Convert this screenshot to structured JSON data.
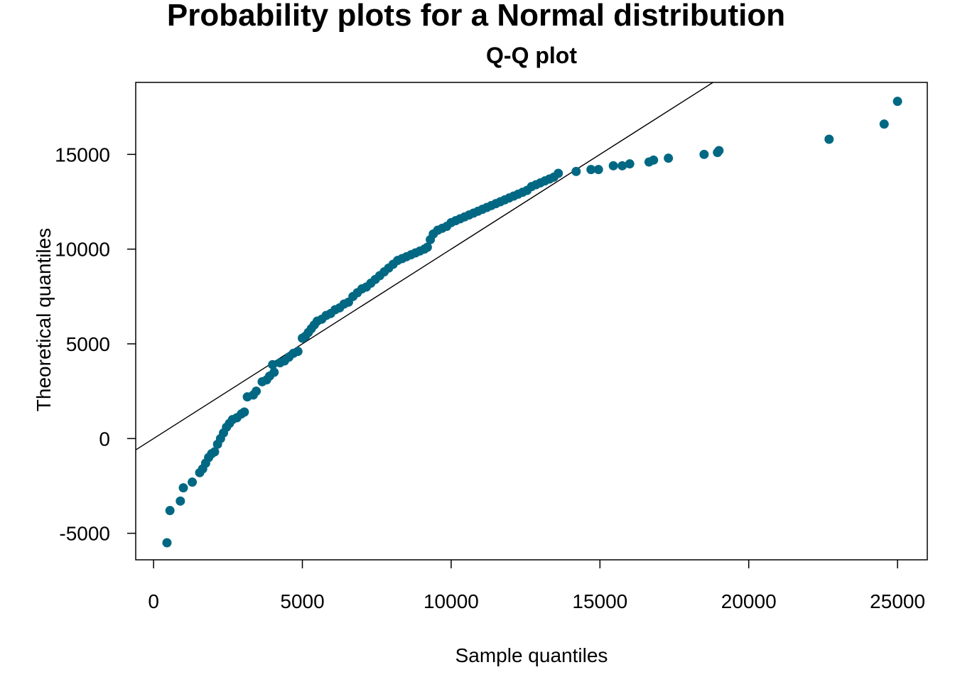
{
  "figure": {
    "title": "Probability plots for a Normal distribution",
    "subtitle": "Q-Q plot"
  },
  "chart_data": {
    "type": "scatter",
    "title": "Q-Q plot",
    "xlabel": "Sample quantiles",
    "ylabel": "Theoretical quantiles",
    "xlim": [
      -600,
      26000
    ],
    "ylim": [
      -6400,
      18800
    ],
    "xticks": [
      0,
      5000,
      10000,
      15000,
      20000,
      25000
    ],
    "yticks": [
      -5000,
      0,
      5000,
      10000,
      15000
    ],
    "x_tick_labels": [
      "0",
      "5000",
      "10000",
      "15000",
      "20000",
      "25000"
    ],
    "y_tick_labels": [
      "-5000",
      "0",
      "5000",
      "10000",
      "15000"
    ],
    "point_color": "#006883",
    "line_color": "#000000",
    "reference_line": {
      "x": [
        -600,
        18800
      ],
      "y": [
        -600,
        18800
      ]
    },
    "points": [
      [
        450,
        -5500
      ],
      [
        550,
        -3800
      ],
      [
        900,
        -3300
      ],
      [
        1000,
        -2600
      ],
      [
        1300,
        -2300
      ],
      [
        1550,
        -1800
      ],
      [
        1650,
        -1600
      ],
      [
        1750,
        -1300
      ],
      [
        1850,
        -1000
      ],
      [
        1950,
        -800
      ],
      [
        2050,
        -700
      ],
      [
        2150,
        -300
      ],
      [
        2250,
        0
      ],
      [
        2350,
        300
      ],
      [
        2450,
        600
      ],
      [
        2550,
        800
      ],
      [
        2650,
        1000
      ],
      [
        2800,
        1100
      ],
      [
        2950,
        1300
      ],
      [
        3050,
        1400
      ],
      [
        3150,
        2200
      ],
      [
        3350,
        2300
      ],
      [
        3450,
        2500
      ],
      [
        3650,
        3000
      ],
      [
        3800,
        3100
      ],
      [
        3900,
        3300
      ],
      [
        4050,
        3500
      ],
      [
        4000,
        3900
      ],
      [
        4250,
        4000
      ],
      [
        4400,
        4100
      ],
      [
        4550,
        4300
      ],
      [
        4700,
        4500
      ],
      [
        4850,
        4600
      ],
      [
        5000,
        5300
      ],
      [
        5100,
        5400
      ],
      [
        5200,
        5600
      ],
      [
        5300,
        5800
      ],
      [
        5400,
        6000
      ],
      [
        5500,
        6200
      ],
      [
        5650,
        6300
      ],
      [
        5800,
        6500
      ],
      [
        5950,
        6600
      ],
      [
        6100,
        6800
      ],
      [
        6250,
        6900
      ],
      [
        6400,
        7100
      ],
      [
        6550,
        7200
      ],
      [
        6700,
        7500
      ],
      [
        6850,
        7700
      ],
      [
        7000,
        7900
      ],
      [
        7150,
        8000
      ],
      [
        7300,
        8200
      ],
      [
        7450,
        8400
      ],
      [
        7600,
        8600
      ],
      [
        7750,
        8800
      ],
      [
        7900,
        9000
      ],
      [
        8050,
        9200
      ],
      [
        8200,
        9400
      ],
      [
        8350,
        9500
      ],
      [
        8500,
        9600
      ],
      [
        8650,
        9700
      ],
      [
        8800,
        9800
      ],
      [
        8950,
        9900
      ],
      [
        9100,
        10000
      ],
      [
        9200,
        10100
      ],
      [
        9300,
        10500
      ],
      [
        9400,
        10800
      ],
      [
        9550,
        11000
      ],
      [
        9700,
        11100
      ],
      [
        9850,
        11200
      ],
      [
        10000,
        11400
      ],
      [
        10150,
        11500
      ],
      [
        10300,
        11600
      ],
      [
        10450,
        11700
      ],
      [
        10600,
        11800
      ],
      [
        10750,
        11900
      ],
      [
        10900,
        12000
      ],
      [
        11050,
        12100
      ],
      [
        11200,
        12200
      ],
      [
        11350,
        12300
      ],
      [
        11500,
        12400
      ],
      [
        11650,
        12500
      ],
      [
        11800,
        12600
      ],
      [
        11950,
        12700
      ],
      [
        12100,
        12800
      ],
      [
        12250,
        12900
      ],
      [
        12400,
        13000
      ],
      [
        12550,
        13100
      ],
      [
        12700,
        13300
      ],
      [
        12850,
        13400
      ],
      [
        13000,
        13500
      ],
      [
        13150,
        13600
      ],
      [
        13300,
        13700
      ],
      [
        13450,
        13800
      ],
      [
        13600,
        14000
      ],
      [
        14200,
        14100
      ],
      [
        14700,
        14200
      ],
      [
        14950,
        14200
      ],
      [
        15450,
        14400
      ],
      [
        15750,
        14400
      ],
      [
        16000,
        14500
      ],
      [
        16650,
        14600
      ],
      [
        16800,
        14700
      ],
      [
        17300,
        14800
      ],
      [
        18500,
        15000
      ],
      [
        18950,
        15100
      ],
      [
        19000,
        15200
      ],
      [
        22700,
        15800
      ],
      [
        24550,
        16600
      ],
      [
        25000,
        17800
      ]
    ]
  }
}
